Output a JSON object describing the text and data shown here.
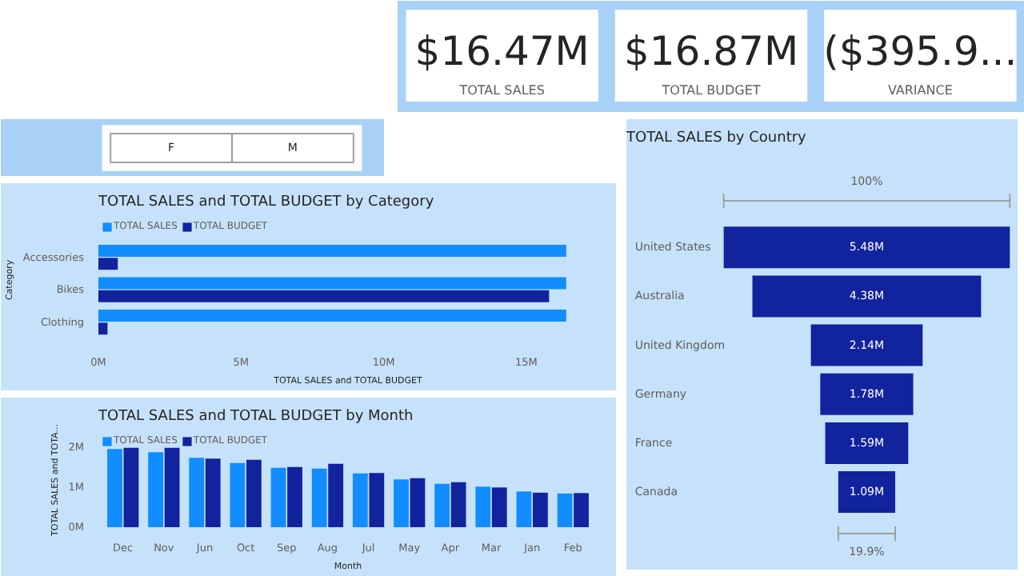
{
  "chart_data": [
    {
      "type": "other",
      "annotations": [
        "$16.47M",
        "TOTAL SALES",
        "$16.87M",
        "TOTAL BUDGET",
        "($395.9...",
        "VARIANCE"
      ]
    },
    {
      "type": "other",
      "categories": [
        "F",
        "M"
      ]
    },
    {
      "type": "bar",
      "orientation": "horizontal",
      "title": "TOTAL SALES and TOTAL BUDGET by Category",
      "xlabel": "TOTAL SALES and TOTAL BUDGET",
      "ylabel": "Category",
      "legend": "top left",
      "categories": [
        "Accessories",
        "Bikes",
        "Clothing"
      ],
      "series": [
        {
          "name": "TOTAL SALES",
          "color": "#118dff",
          "values": [
            16.4,
            16.4,
            16.4
          ]
        },
        {
          "name": "TOTAL BUDGET",
          "color": "#12239e",
          "values": [
            0.68,
            15.8,
            0.32
          ]
        }
      ],
      "xlim": [
        0,
        17.5
      ],
      "xticks": [
        {
          "value": 0,
          "label": "0M"
        },
        {
          "value": 5,
          "label": "5M"
        },
        {
          "value": 10,
          "label": "10M"
        },
        {
          "value": 15,
          "label": "15M"
        }
      ]
    },
    {
      "type": "bar",
      "title": "TOTAL SALES and TOTAL BUDGET by Month",
      "xlabel": "Month",
      "ylabel": "TOTAL SALES and TOTA...",
      "legend": "top left",
      "categories": [
        "Dec",
        "Nov",
        "Jun",
        "Oct",
        "Sep",
        "Aug",
        "Jul",
        "May",
        "Apr",
        "Mar",
        "Jan",
        "Feb"
      ],
      "series": [
        {
          "name": "TOTAL SALES",
          "color": "#118dff",
          "values": [
            1.95,
            1.87,
            1.73,
            1.6,
            1.48,
            1.46,
            1.34,
            1.19,
            1.08,
            1.01,
            0.89,
            0.84
          ]
        },
        {
          "name": "TOTAL BUDGET",
          "color": "#12239e",
          "values": [
            1.98,
            1.98,
            1.71,
            1.68,
            1.5,
            1.58,
            1.35,
            1.22,
            1.12,
            0.99,
            0.86,
            0.85
          ]
        }
      ],
      "ylim": [
        0,
        2.1
      ],
      "yticks": [
        {
          "value": 0,
          "label": "0M"
        },
        {
          "value": 1,
          "label": "1M"
        },
        {
          "value": 2,
          "label": "2M"
        }
      ]
    },
    {
      "type": "other",
      "title": "TOTAL SALES by Country",
      "color": "#12239e",
      "categories": [
        "United States",
        "Australia",
        "United Kingdom",
        "Germany",
        "France",
        "Canada"
      ],
      "values": [
        5.48,
        4.38,
        2.14,
        1.78,
        1.59,
        1.09
      ],
      "value_labels": [
        "5.48M",
        "4.38M",
        "2.14M",
        "1.78M",
        "1.59M",
        "1.09M"
      ],
      "annotations": [
        "100%",
        "19.9%"
      ]
    }
  ]
}
